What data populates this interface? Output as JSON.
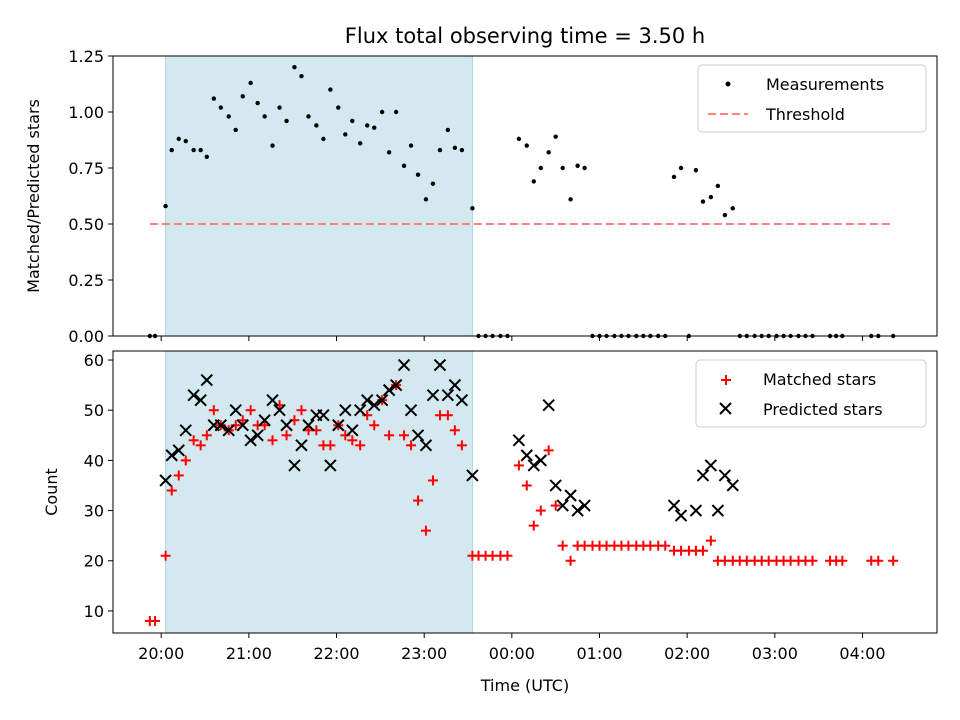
{
  "title": "Flux total observing time = 3.50 h",
  "xlabel": "Time (UTC)",
  "xticks": [
    "20:00",
    "21:00",
    "22:00",
    "23:00",
    "00:00",
    "01:00",
    "02:00",
    "03:00",
    "04:00"
  ],
  "shade_color": "#d3e9ef",
  "chart_data": [
    {
      "type": "scatter",
      "panel": "top",
      "ylabel": "Matched/Predicted stars",
      "ylim": [
        0,
        1.25
      ],
      "yticks": [
        0.0,
        0.25,
        0.5,
        0.75,
        1.0,
        1.25
      ],
      "ytick_labels": [
        "0.00",
        "0.25",
        "0.50",
        "0.75",
        "1.00",
        "1.25"
      ],
      "xlim_hours": [
        19.45,
        28.85
      ],
      "shaded_span_hours": [
        20.05,
        23.55
      ],
      "legend_position": "top-right",
      "series": [
        {
          "name": "Measurements",
          "marker": "dot",
          "color": "#000000",
          "points": [
            [
              19.87,
              0.0
            ],
            [
              19.93,
              0.0
            ],
            [
              20.05,
              0.58
            ],
            [
              20.12,
              0.83
            ],
            [
              20.2,
              0.88
            ],
            [
              20.28,
              0.87
            ],
            [
              20.37,
              0.83
            ],
            [
              20.45,
              0.83
            ],
            [
              20.52,
              0.8
            ],
            [
              20.6,
              1.06
            ],
            [
              20.68,
              1.02
            ],
            [
              20.77,
              0.98
            ],
            [
              20.85,
              0.92
            ],
            [
              20.93,
              1.07
            ],
            [
              21.02,
              1.13
            ],
            [
              21.1,
              1.04
            ],
            [
              21.18,
              0.98
            ],
            [
              21.27,
              0.85
            ],
            [
              21.35,
              1.02
            ],
            [
              21.43,
              0.96
            ],
            [
              21.52,
              1.2
            ],
            [
              21.6,
              1.16
            ],
            [
              21.68,
              0.98
            ],
            [
              21.77,
              0.94
            ],
            [
              21.85,
              0.88
            ],
            [
              21.93,
              1.1
            ],
            [
              22.02,
              1.02
            ],
            [
              22.1,
              0.9
            ],
            [
              22.18,
              0.96
            ],
            [
              22.27,
              0.86
            ],
            [
              22.35,
              0.94
            ],
            [
              22.43,
              0.93
            ],
            [
              22.52,
              1.0
            ],
            [
              22.6,
              0.82
            ],
            [
              22.68,
              1.0
            ],
            [
              22.77,
              0.76
            ],
            [
              22.85,
              0.85
            ],
            [
              22.93,
              0.72
            ],
            [
              23.02,
              0.61
            ],
            [
              23.1,
              0.68
            ],
            [
              23.18,
              0.83
            ],
            [
              23.27,
              0.92
            ],
            [
              23.35,
              0.84
            ],
            [
              23.43,
              0.83
            ],
            [
              23.55,
              0.57
            ],
            [
              23.62,
              0.0
            ],
            [
              23.7,
              0.0
            ],
            [
              23.78,
              0.0
            ],
            [
              23.87,
              0.0
            ],
            [
              23.95,
              0.0
            ],
            [
              24.08,
              0.88
            ],
            [
              24.17,
              0.85
            ],
            [
              24.25,
              0.69
            ],
            [
              24.33,
              0.75
            ],
            [
              24.42,
              0.82
            ],
            [
              24.5,
              0.89
            ],
            [
              24.58,
              0.75
            ],
            [
              24.67,
              0.61
            ],
            [
              24.75,
              0.76
            ],
            [
              24.83,
              0.75
            ],
            [
              24.92,
              0.0
            ],
            [
              25.0,
              0.0
            ],
            [
              25.08,
              0.0
            ],
            [
              25.17,
              0.0
            ],
            [
              25.25,
              0.0
            ],
            [
              25.33,
              0.0
            ],
            [
              25.42,
              0.0
            ],
            [
              25.5,
              0.0
            ],
            [
              25.58,
              0.0
            ],
            [
              25.67,
              0.0
            ],
            [
              25.75,
              0.0
            ],
            [
              25.85,
              0.71
            ],
            [
              25.93,
              0.75
            ],
            [
              26.02,
              0.0
            ],
            [
              26.1,
              0.74
            ],
            [
              26.18,
              0.6
            ],
            [
              26.27,
              0.62
            ],
            [
              26.35,
              0.67
            ],
            [
              26.43,
              0.54
            ],
            [
              26.52,
              0.57
            ],
            [
              26.6,
              0.0
            ],
            [
              26.68,
              0.0
            ],
            [
              26.77,
              0.0
            ],
            [
              26.85,
              0.0
            ],
            [
              26.93,
              0.0
            ],
            [
              27.02,
              0.0
            ],
            [
              27.1,
              0.0
            ],
            [
              27.18,
              0.0
            ],
            [
              27.27,
              0.0
            ],
            [
              27.35,
              0.0
            ],
            [
              27.43,
              0.0
            ],
            [
              27.63,
              0.0
            ],
            [
              27.7,
              0.0
            ],
            [
              27.77,
              0.0
            ],
            [
              28.1,
              0.0
            ],
            [
              28.18,
              0.0
            ],
            [
              28.35,
              0.0
            ]
          ]
        },
        {
          "name": "Threshold",
          "marker": "dashed-line",
          "color": "#ff7f7f",
          "points": [
            [
              19.87,
              0.5
            ],
            [
              28.35,
              0.5
            ]
          ]
        }
      ]
    },
    {
      "type": "scatter",
      "panel": "bottom",
      "ylabel": "Count",
      "ylim": [
        5.6,
        61.8
      ],
      "yticks": [
        10,
        20,
        30,
        40,
        50,
        60
      ],
      "ytick_labels": [
        "10",
        "20",
        "30",
        "40",
        "50",
        "60"
      ],
      "xlim_hours": [
        19.45,
        28.85
      ],
      "shaded_span_hours": [
        20.05,
        23.55
      ],
      "legend_position": "top-right",
      "series": [
        {
          "name": "Matched stars",
          "marker": "plus",
          "color": "#ff0000",
          "points": [
            [
              19.87,
              8
            ],
            [
              19.93,
              8
            ],
            [
              20.05,
              21
            ],
            [
              20.12,
              34
            ],
            [
              20.2,
              37
            ],
            [
              20.28,
              40
            ],
            [
              20.37,
              44
            ],
            [
              20.45,
              43
            ],
            [
              20.52,
              45
            ],
            [
              20.6,
              50
            ],
            [
              20.68,
              47
            ],
            [
              20.77,
              46
            ],
            [
              20.85,
              47
            ],
            [
              20.93,
              48
            ],
            [
              21.02,
              50
            ],
            [
              21.1,
              47
            ],
            [
              21.18,
              47
            ],
            [
              21.27,
              44
            ],
            [
              21.35,
              51
            ],
            [
              21.43,
              45
            ],
            [
              21.52,
              48
            ],
            [
              21.6,
              50
            ],
            [
              21.68,
              46
            ],
            [
              21.77,
              46
            ],
            [
              21.85,
              43
            ],
            [
              21.93,
              43
            ],
            [
              22.02,
              47
            ],
            [
              22.1,
              45
            ],
            [
              22.18,
              44
            ],
            [
              22.27,
              43
            ],
            [
              22.35,
              49
            ],
            [
              22.43,
              47
            ],
            [
              22.52,
              52
            ],
            [
              22.6,
              45
            ],
            [
              22.68,
              55
            ],
            [
              22.77,
              45
            ],
            [
              22.85,
              43
            ],
            [
              22.93,
              32
            ],
            [
              23.02,
              26
            ],
            [
              23.1,
              36
            ],
            [
              23.18,
              49
            ],
            [
              23.27,
              49
            ],
            [
              23.35,
              46
            ],
            [
              23.43,
              43
            ],
            [
              23.55,
              21
            ],
            [
              23.62,
              21
            ],
            [
              23.7,
              21
            ],
            [
              23.78,
              21
            ],
            [
              23.87,
              21
            ],
            [
              23.95,
              21
            ],
            [
              24.08,
              39
            ],
            [
              24.17,
              35
            ],
            [
              24.25,
              27
            ],
            [
              24.33,
              30
            ],
            [
              24.42,
              42
            ],
            [
              24.5,
              31
            ],
            [
              24.58,
              23
            ],
            [
              24.67,
              20
            ],
            [
              24.75,
              23
            ],
            [
              24.83,
              23
            ],
            [
              24.92,
              23
            ],
            [
              25.0,
              23
            ],
            [
              25.08,
              23
            ],
            [
              25.17,
              23
            ],
            [
              25.25,
              23
            ],
            [
              25.33,
              23
            ],
            [
              25.42,
              23
            ],
            [
              25.5,
              23
            ],
            [
              25.58,
              23
            ],
            [
              25.67,
              23
            ],
            [
              25.75,
              23
            ],
            [
              25.85,
              22
            ],
            [
              25.93,
              22
            ],
            [
              26.02,
              22
            ],
            [
              26.1,
              22
            ],
            [
              26.18,
              22
            ],
            [
              26.27,
              24
            ],
            [
              26.35,
              20
            ],
            [
              26.43,
              20
            ],
            [
              26.52,
              20
            ],
            [
              26.6,
              20
            ],
            [
              26.68,
              20
            ],
            [
              26.77,
              20
            ],
            [
              26.85,
              20
            ],
            [
              26.93,
              20
            ],
            [
              27.02,
              20
            ],
            [
              27.1,
              20
            ],
            [
              27.18,
              20
            ],
            [
              27.27,
              20
            ],
            [
              27.35,
              20
            ],
            [
              27.43,
              20
            ],
            [
              27.63,
              20
            ],
            [
              27.7,
              20
            ],
            [
              27.77,
              20
            ],
            [
              28.1,
              20
            ],
            [
              28.18,
              20
            ],
            [
              28.35,
              20
            ]
          ]
        },
        {
          "name": "Predicted stars",
          "marker": "x",
          "color": "#000000",
          "points": [
            [
              20.05,
              36
            ],
            [
              20.12,
              41
            ],
            [
              20.2,
              42
            ],
            [
              20.28,
              46
            ],
            [
              20.37,
              53
            ],
            [
              20.45,
              52
            ],
            [
              20.52,
              56
            ],
            [
              20.6,
              47
            ],
            [
              20.68,
              47
            ],
            [
              20.77,
              46
            ],
            [
              20.85,
              50
            ],
            [
              20.93,
              47
            ],
            [
              21.02,
              44
            ],
            [
              21.1,
              45
            ],
            [
              21.18,
              48
            ],
            [
              21.27,
              52
            ],
            [
              21.35,
              50
            ],
            [
              21.43,
              47
            ],
            [
              21.52,
              39
            ],
            [
              21.6,
              43
            ],
            [
              21.68,
              47
            ],
            [
              21.77,
              49
            ],
            [
              21.85,
              49
            ],
            [
              21.93,
              39
            ],
            [
              22.02,
              47
            ],
            [
              22.1,
              50
            ],
            [
              22.18,
              46
            ],
            [
              22.27,
              50
            ],
            [
              22.35,
              52
            ],
            [
              22.43,
              51
            ],
            [
              22.52,
              52
            ],
            [
              22.6,
              54
            ],
            [
              22.68,
              55
            ],
            [
              22.77,
              59
            ],
            [
              22.85,
              50
            ],
            [
              22.93,
              45
            ],
            [
              23.02,
              43
            ],
            [
              23.1,
              53
            ],
            [
              23.18,
              59
            ],
            [
              23.27,
              53
            ],
            [
              23.35,
              55
            ],
            [
              23.43,
              52
            ],
            [
              23.55,
              37
            ],
            [
              24.08,
              44
            ],
            [
              24.17,
              41
            ],
            [
              24.25,
              39
            ],
            [
              24.33,
              40
            ],
            [
              24.42,
              51
            ],
            [
              24.5,
              35
            ],
            [
              24.58,
              31
            ],
            [
              24.67,
              33
            ],
            [
              24.75,
              30
            ],
            [
              24.83,
              31
            ],
            [
              25.85,
              31
            ],
            [
              25.93,
              29
            ],
            [
              26.1,
              30
            ],
            [
              26.18,
              37
            ],
            [
              26.27,
              39
            ],
            [
              26.35,
              30
            ],
            [
              26.43,
              37
            ],
            [
              26.52,
              35
            ]
          ]
        }
      ]
    }
  ]
}
